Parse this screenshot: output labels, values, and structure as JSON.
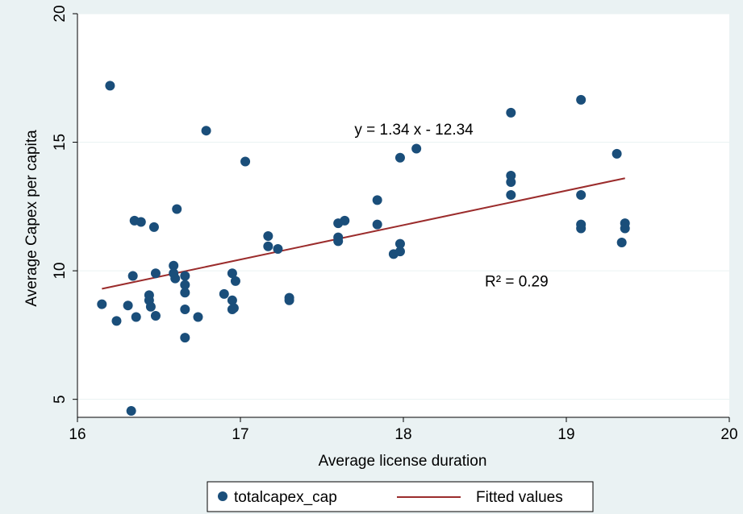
{
  "chart_data": {
    "type": "scatter",
    "xlabel": "Average license duration",
    "ylabel": "Average Capex per capita",
    "xlim": [
      16,
      20
    ],
    "ylim": [
      4.3,
      20
    ],
    "xticks": [
      "16",
      "17",
      "18",
      "19",
      "20"
    ],
    "yticks": [
      "5",
      "10",
      "15",
      "20"
    ],
    "grid": true,
    "legend_position": "bottom",
    "series": [
      {
        "name": "totalcapex_cap",
        "marker": "circle",
        "color": "#1a4e7a",
        "points": [
          [
            16.2,
            17.2
          ],
          [
            16.15,
            8.7
          ],
          [
            16.24,
            8.05
          ],
          [
            16.31,
            8.65
          ],
          [
            16.33,
            4.55
          ],
          [
            16.34,
            9.8
          ],
          [
            16.35,
            11.95
          ],
          [
            16.36,
            8.2
          ],
          [
            16.39,
            11.9
          ],
          [
            16.44,
            9.05
          ],
          [
            16.44,
            8.85
          ],
          [
            16.45,
            8.6
          ],
          [
            16.47,
            11.7
          ],
          [
            16.48,
            9.9
          ],
          [
            16.48,
            8.25
          ],
          [
            16.59,
            10.2
          ],
          [
            16.59,
            9.9
          ],
          [
            16.6,
            9.7
          ],
          [
            16.61,
            12.4
          ],
          [
            16.66,
            9.8
          ],
          [
            16.66,
            9.45
          ],
          [
            16.66,
            9.15
          ],
          [
            16.66,
            8.5
          ],
          [
            16.66,
            7.4
          ],
          [
            16.74,
            8.2
          ],
          [
            16.79,
            15.45
          ],
          [
            16.9,
            9.1
          ],
          [
            16.95,
            9.9
          ],
          [
            16.95,
            8.85
          ],
          [
            16.95,
            8.5
          ],
          [
            16.96,
            8.55
          ],
          [
            16.97,
            9.6
          ],
          [
            17.03,
            14.25
          ],
          [
            17.17,
            11.35
          ],
          [
            17.17,
            10.95
          ],
          [
            17.23,
            10.85
          ],
          [
            17.3,
            8.95
          ],
          [
            17.3,
            8.85
          ],
          [
            17.6,
            11.85
          ],
          [
            17.6,
            11.3
          ],
          [
            17.6,
            11.15
          ],
          [
            17.64,
            11.95
          ],
          [
            17.84,
            12.75
          ],
          [
            17.84,
            11.8
          ],
          [
            17.94,
            10.65
          ],
          [
            17.98,
            14.4
          ],
          [
            17.98,
            11.05
          ],
          [
            17.98,
            10.75
          ],
          [
            18.08,
            14.75
          ],
          [
            18.66,
            16.15
          ],
          [
            18.66,
            13.7
          ],
          [
            18.66,
            13.45
          ],
          [
            18.66,
            12.95
          ],
          [
            19.09,
            16.65
          ],
          [
            19.09,
            12.95
          ],
          [
            19.09,
            11.8
          ],
          [
            19.09,
            11.65
          ],
          [
            19.31,
            14.55
          ],
          [
            19.34,
            11.1
          ],
          [
            19.36,
            11.85
          ],
          [
            19.36,
            11.65
          ]
        ]
      },
      {
        "name": "Fitted values",
        "type": "line",
        "color": "#9b2c2c",
        "points": [
          [
            16.15,
            9.3
          ],
          [
            19.36,
            13.6
          ]
        ]
      }
    ],
    "annotations": [
      {
        "text": "y = 1.34 x - 12.34",
        "x": 17.7,
        "y": 15.3
      },
      {
        "text": "R² = 0.29",
        "x": 18.5,
        "y": 9.4
      }
    ]
  }
}
